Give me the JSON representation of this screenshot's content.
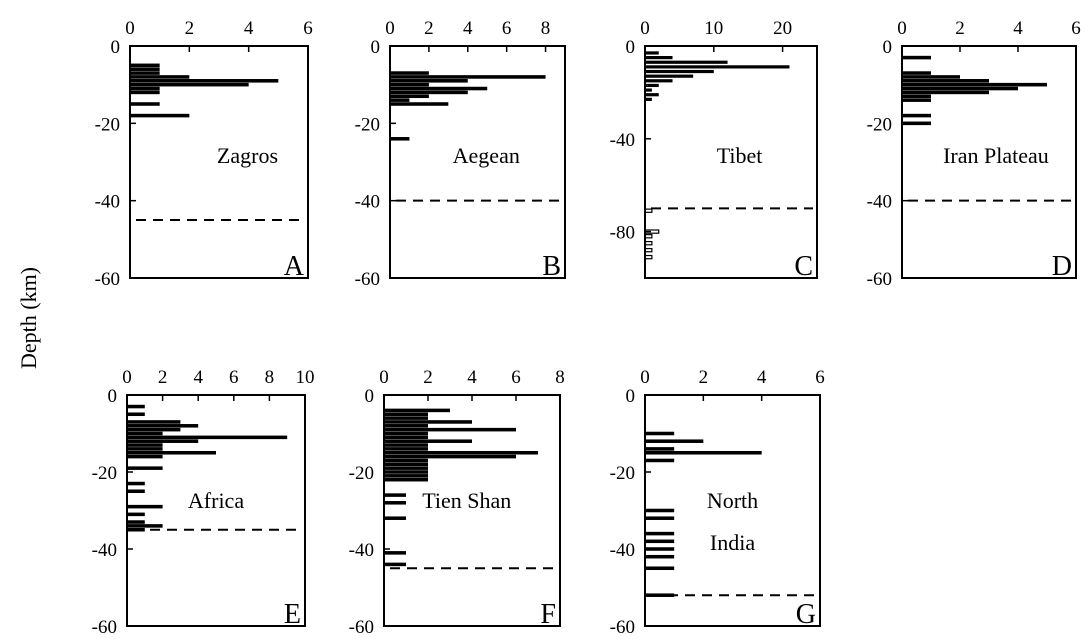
{
  "figure": {
    "ylabel": "Depth (km)"
  },
  "chart_data": [
    {
      "type": "bar",
      "orientation": "horizontal",
      "title": "Zagros",
      "panel_letter": "A",
      "xlim": [
        0,
        6
      ],
      "x_ticks": [
        0,
        2,
        4,
        6
      ],
      "ylim": [
        -60,
        0
      ],
      "y_ticks": [
        0,
        -20,
        -40,
        -60
      ],
      "moho_depth": -45,
      "bars": [
        {
          "depth": -5,
          "value": 1
        },
        {
          "depth": -6,
          "value": 1
        },
        {
          "depth": -7,
          "value": 1
        },
        {
          "depth": -8,
          "value": 2
        },
        {
          "depth": -9,
          "value": 5
        },
        {
          "depth": -10,
          "value": 4
        },
        {
          "depth": -11,
          "value": 1
        },
        {
          "depth": -12,
          "value": 1
        },
        {
          "depth": -15,
          "value": 1
        },
        {
          "depth": -18,
          "value": 2
        }
      ]
    },
    {
      "type": "bar",
      "orientation": "horizontal",
      "title": "Aegean",
      "panel_letter": "B",
      "xlim": [
        0,
        9
      ],
      "x_ticks": [
        0,
        2,
        4,
        6,
        8
      ],
      "ylim": [
        -60,
        0
      ],
      "y_ticks": [
        0,
        -20,
        -40,
        -60
      ],
      "moho_depth": -40,
      "bars": [
        {
          "depth": -7,
          "value": 2
        },
        {
          "depth": -8,
          "value": 8
        },
        {
          "depth": -9,
          "value": 4
        },
        {
          "depth": -10,
          "value": 2
        },
        {
          "depth": -11,
          "value": 5
        },
        {
          "depth": -12,
          "value": 4
        },
        {
          "depth": -13,
          "value": 2
        },
        {
          "depth": -14,
          "value": 1
        },
        {
          "depth": -15,
          "value": 3
        },
        {
          "depth": -24,
          "value": 1
        }
      ]
    },
    {
      "type": "bar",
      "orientation": "horizontal",
      "title": "Tibet",
      "panel_letter": "C",
      "xlim": [
        0,
        25
      ],
      "x_ticks": [
        0,
        10,
        20
      ],
      "ylim": [
        -100,
        0
      ],
      "y_ticks": [
        0,
        -40,
        -80
      ],
      "moho_depth": -70,
      "bars": [
        {
          "depth": -3,
          "value": 2
        },
        {
          "depth": -5,
          "value": 4
        },
        {
          "depth": -7,
          "value": 12
        },
        {
          "depth": -9,
          "value": 21
        },
        {
          "depth": -11,
          "value": 10
        },
        {
          "depth": -13,
          "value": 7
        },
        {
          "depth": -15,
          "value": 4
        },
        {
          "depth": -17,
          "value": 2
        },
        {
          "depth": -19,
          "value": 1
        },
        {
          "depth": -21,
          "value": 2
        },
        {
          "depth": -23,
          "value": 1
        }
      ],
      "outline_bars": [
        {
          "depth": -71,
          "value": 1
        },
        {
          "depth": -80,
          "value": 2
        },
        {
          "depth": -82,
          "value": 1
        },
        {
          "depth": -85,
          "value": 1
        },
        {
          "depth": -88,
          "value": 1
        },
        {
          "depth": -91,
          "value": 1
        }
      ]
    },
    {
      "type": "bar",
      "orientation": "horizontal",
      "title": "Iran Plateau",
      "panel_letter": "D",
      "xlim": [
        0,
        6
      ],
      "x_ticks": [
        0,
        2,
        4,
        6
      ],
      "ylim": [
        -60,
        0
      ],
      "y_ticks": [
        0,
        -20,
        -40,
        -60
      ],
      "moho_depth": -40,
      "bars": [
        {
          "depth": -3,
          "value": 1
        },
        {
          "depth": -7,
          "value": 1
        },
        {
          "depth": -8,
          "value": 2
        },
        {
          "depth": -9,
          "value": 3
        },
        {
          "depth": -10,
          "value": 5
        },
        {
          "depth": -11,
          "value": 4
        },
        {
          "depth": -12,
          "value": 3
        },
        {
          "depth": -13,
          "value": 1
        },
        {
          "depth": -14,
          "value": 1
        },
        {
          "depth": -18,
          "value": 1
        },
        {
          "depth": -20,
          "value": 1
        }
      ]
    },
    {
      "type": "bar",
      "orientation": "horizontal",
      "title": "Africa",
      "panel_letter": "E",
      "xlim": [
        0,
        10
      ],
      "x_ticks": [
        0,
        2,
        4,
        6,
        8,
        10
      ],
      "ylim": [
        -60,
        0
      ],
      "y_ticks": [
        0,
        -20,
        -40,
        -60
      ],
      "moho_depth": -35,
      "bars": [
        {
          "depth": -3,
          "value": 1
        },
        {
          "depth": -5,
          "value": 1
        },
        {
          "depth": -7,
          "value": 3
        },
        {
          "depth": -8,
          "value": 4
        },
        {
          "depth": -9,
          "value": 3
        },
        {
          "depth": -10,
          "value": 2
        },
        {
          "depth": -11,
          "value": 9
        },
        {
          "depth": -12,
          "value": 4
        },
        {
          "depth": -13,
          "value": 2
        },
        {
          "depth": -14,
          "value": 2
        },
        {
          "depth": -15,
          "value": 5
        },
        {
          "depth": -16,
          "value": 2
        },
        {
          "depth": -19,
          "value": 2
        },
        {
          "depth": -23,
          "value": 1
        },
        {
          "depth": -25,
          "value": 1
        },
        {
          "depth": -29,
          "value": 2
        },
        {
          "depth": -31,
          "value": 1
        },
        {
          "depth": -33,
          "value": 1
        },
        {
          "depth": -34,
          "value": 2
        },
        {
          "depth": -35,
          "value": 1
        }
      ]
    },
    {
      "type": "bar",
      "orientation": "horizontal",
      "title": "Tien Shan",
      "panel_letter": "F",
      "xlim": [
        0,
        8
      ],
      "x_ticks": [
        0,
        2,
        4,
        6,
        8
      ],
      "ylim": [
        -60,
        0
      ],
      "y_ticks": [
        0,
        -20,
        -40,
        -60
      ],
      "moho_depth": -45,
      "bars": [
        {
          "depth": -4,
          "value": 3
        },
        {
          "depth": -5,
          "value": 2
        },
        {
          "depth": -6,
          "value": 2
        },
        {
          "depth": -7,
          "value": 4
        },
        {
          "depth": -8,
          "value": 2
        },
        {
          "depth": -9,
          "value": 6
        },
        {
          "depth": -10,
          "value": 2
        },
        {
          "depth": -11,
          "value": 2
        },
        {
          "depth": -12,
          "value": 4
        },
        {
          "depth": -13,
          "value": 2
        },
        {
          "depth": -14,
          "value": 2
        },
        {
          "depth": -15,
          "value": 7
        },
        {
          "depth": -16,
          "value": 6
        },
        {
          "depth": -17,
          "value": 2
        },
        {
          "depth": -18,
          "value": 2
        },
        {
          "depth": -19,
          "value": 2
        },
        {
          "depth": -20,
          "value": 2
        },
        {
          "depth": -21,
          "value": 2
        },
        {
          "depth": -22,
          "value": 2
        },
        {
          "depth": -26,
          "value": 1
        },
        {
          "depth": -28,
          "value": 1
        },
        {
          "depth": -32,
          "value": 1
        },
        {
          "depth": -41,
          "value": 1
        },
        {
          "depth": -44,
          "value": 1
        }
      ]
    },
    {
      "type": "bar",
      "orientation": "horizontal",
      "title": "North India",
      "panel_letter": "G",
      "xlim": [
        0,
        6
      ],
      "x_ticks": [
        0,
        2,
        4,
        6
      ],
      "ylim": [
        -60,
        0
      ],
      "y_ticks": [
        0,
        -20,
        -40,
        -60
      ],
      "moho_depth": -52,
      "bars": [
        {
          "depth": -10,
          "value": 1
        },
        {
          "depth": -12,
          "value": 2
        },
        {
          "depth": -14,
          "value": 1
        },
        {
          "depth": -15,
          "value": 4
        },
        {
          "depth": -17,
          "value": 1
        },
        {
          "depth": -30,
          "value": 1
        },
        {
          "depth": -32,
          "value": 1
        },
        {
          "depth": -36,
          "value": 1
        },
        {
          "depth": -38,
          "value": 1
        },
        {
          "depth": -40,
          "value": 1
        },
        {
          "depth": -42,
          "value": 1
        },
        {
          "depth": -45,
          "value": 1
        },
        {
          "depth": -52,
          "value": 1
        }
      ]
    }
  ]
}
